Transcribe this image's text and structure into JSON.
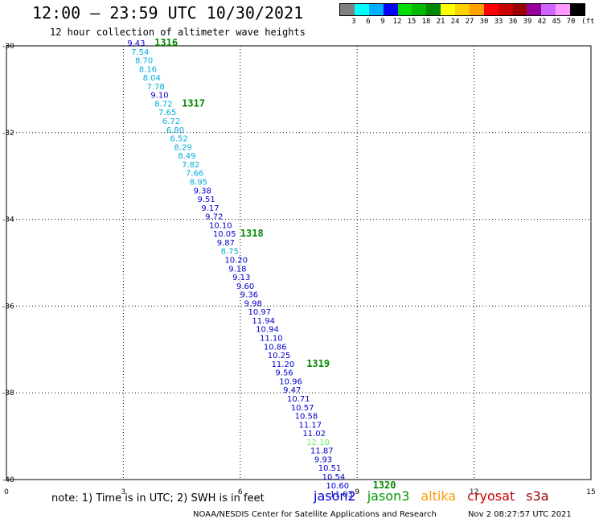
{
  "title": "12:00 – 23:59 UTC 10/30/2021",
  "subtitle": "12 hour collection of altimeter wave heights",
  "legend": {
    "colors": [
      "#808080",
      "#00ffff",
      "#00b0ff",
      "#0000ff",
      "#00dd00",
      "#00bb00",
      "#008800",
      "#ffff00",
      "#ffd000",
      "#ffa000",
      "#ff0000",
      "#cc0000",
      "#990000",
      "#990099",
      "#cc66ff",
      "#ff99ff",
      "#000000"
    ],
    "labels": [
      "3",
      "6",
      "9",
      "12",
      "15",
      "18",
      "21",
      "24",
      "27",
      "30",
      "33",
      "36",
      "39",
      "42",
      "45",
      "70",
      "(ft)"
    ]
  },
  "axes": {
    "x_ticks": [
      "0",
      "3",
      "6",
      "9",
      "12",
      "15"
    ],
    "y_ticks": [
      "-30",
      "-32",
      "-34",
      "-36",
      "-38",
      "-40"
    ]
  },
  "footer": {
    "note": "note: 1) Time is in UTC; 2) SWH is in feet",
    "credit": "NOAA/NESDIS Center for Satellite Applications and Research",
    "timestamp": "Nov  2 08:27:57 UTC 2021"
  },
  "satellites": [
    {
      "name": "jason2",
      "color": "#0000cc"
    },
    {
      "name": "jason3",
      "color": "#009900"
    },
    {
      "name": "altika",
      "color": "#ff9900"
    },
    {
      "name": "cryosat",
      "color": "#cc0000"
    },
    {
      "name": "s3a",
      "color": "#990000"
    }
  ],
  "chart_data": {
    "type": "scatter",
    "x_range": [
      0,
      15
    ],
    "y_range": [
      -40,
      -30
    ],
    "points": [
      {
        "x": 3.1,
        "y": -30.0,
        "label": "9.43",
        "color": "#0000cc"
      },
      {
        "x": 3.2,
        "y": -30.2,
        "label": "7.54",
        "color": "#00aadd"
      },
      {
        "x": 3.3,
        "y": -30.4,
        "label": "8.70",
        "color": "#00aadd"
      },
      {
        "x": 3.4,
        "y": -30.6,
        "label": "8.16",
        "color": "#00aadd"
      },
      {
        "x": 3.5,
        "y": -30.8,
        "label": "8.04",
        "color": "#00aadd"
      },
      {
        "x": 3.6,
        "y": -31.0,
        "label": "7.78",
        "color": "#00aadd"
      },
      {
        "x": 3.7,
        "y": -31.2,
        "label": "9.10",
        "color": "#0000cc"
      },
      {
        "x": 3.8,
        "y": -31.4,
        "label": "8.72",
        "color": "#00aadd"
      },
      {
        "x": 3.9,
        "y": -31.6,
        "label": "7.65",
        "color": "#00aadd"
      },
      {
        "x": 4.0,
        "y": -31.8,
        "label": "6.72",
        "color": "#00aadd"
      },
      {
        "x": 4.1,
        "y": -32.0,
        "label": "6.80",
        "color": "#00aadd"
      },
      {
        "x": 4.2,
        "y": -32.2,
        "label": "6.52",
        "color": "#00aadd"
      },
      {
        "x": 4.3,
        "y": -32.4,
        "label": "8.29",
        "color": "#00aadd"
      },
      {
        "x": 4.4,
        "y": -32.6,
        "label": "8.49",
        "color": "#00aadd"
      },
      {
        "x": 4.5,
        "y": -32.8,
        "label": "7.82",
        "color": "#00aadd"
      },
      {
        "x": 4.6,
        "y": -33.0,
        "label": "7.66",
        "color": "#00aadd"
      },
      {
        "x": 4.7,
        "y": -33.2,
        "label": "8.95",
        "color": "#00aadd"
      },
      {
        "x": 4.8,
        "y": -33.4,
        "label": "9.38",
        "color": "#0000cc"
      },
      {
        "x": 4.9,
        "y": -33.6,
        "label": "9.51",
        "color": "#0000cc"
      },
      {
        "x": 5.0,
        "y": -33.8,
        "label": "9.17",
        "color": "#0000cc"
      },
      {
        "x": 5.1,
        "y": -34.0,
        "label": "9.72",
        "color": "#0000cc"
      },
      {
        "x": 5.2,
        "y": -34.2,
        "label": "10.10",
        "color": "#0000cc"
      },
      {
        "x": 5.3,
        "y": -34.4,
        "label": "10.05",
        "color": "#0000cc"
      },
      {
        "x": 5.4,
        "y": -34.6,
        "label": "9.87",
        "color": "#0000cc"
      },
      {
        "x": 5.5,
        "y": -34.8,
        "label": "8.75",
        "color": "#00aadd"
      },
      {
        "x": 5.6,
        "y": -35.0,
        "label": "10.20",
        "color": "#0000cc"
      },
      {
        "x": 5.7,
        "y": -35.2,
        "label": "9.18",
        "color": "#0000cc"
      },
      {
        "x": 5.8,
        "y": -35.4,
        "label": "9.13",
        "color": "#0000cc"
      },
      {
        "x": 5.9,
        "y": -35.6,
        "label": "9.60",
        "color": "#0000cc"
      },
      {
        "x": 6.0,
        "y": -35.8,
        "label": "9.36",
        "color": "#0000cc"
      },
      {
        "x": 6.1,
        "y": -36.0,
        "label": "9.98",
        "color": "#0000cc"
      },
      {
        "x": 6.2,
        "y": -36.2,
        "label": "10.97",
        "color": "#0000cc"
      },
      {
        "x": 6.3,
        "y": -36.4,
        "label": "11.94",
        "color": "#0000cc"
      },
      {
        "x": 6.4,
        "y": -36.6,
        "label": "10.94",
        "color": "#0000cc"
      },
      {
        "x": 6.5,
        "y": -36.8,
        "label": "11.10",
        "color": "#0000cc"
      },
      {
        "x": 6.6,
        "y": -37.0,
        "label": "10.86",
        "color": "#0000cc"
      },
      {
        "x": 6.7,
        "y": -37.2,
        "label": "10.25",
        "color": "#0000cc"
      },
      {
        "x": 6.8,
        "y": -37.4,
        "label": "11.20",
        "color": "#0000cc"
      },
      {
        "x": 6.9,
        "y": -37.6,
        "label": "9.56",
        "color": "#0000cc"
      },
      {
        "x": 7.0,
        "y": -37.8,
        "label": "10.96",
        "color": "#0000cc"
      },
      {
        "x": 7.1,
        "y": -38.0,
        "label": "9.47",
        "color": "#0000cc"
      },
      {
        "x": 7.2,
        "y": -38.2,
        "label": "10.71",
        "color": "#0000cc"
      },
      {
        "x": 7.3,
        "y": -38.4,
        "label": "10.57",
        "color": "#0000cc"
      },
      {
        "x": 7.4,
        "y": -38.6,
        "label": "10.58",
        "color": "#0000cc"
      },
      {
        "x": 7.5,
        "y": -38.8,
        "label": "11.17",
        "color": "#0000cc"
      },
      {
        "x": 7.6,
        "y": -39.0,
        "label": "11.02",
        "color": "#0000cc"
      },
      {
        "x": 7.7,
        "y": -39.2,
        "label": "12.10",
        "color": "#66ee66"
      },
      {
        "x": 7.8,
        "y": -39.4,
        "label": "11.87",
        "color": "#0000cc"
      },
      {
        "x": 7.9,
        "y": -39.6,
        "label": "9.93",
        "color": "#0000cc"
      },
      {
        "x": 8.0,
        "y": -39.8,
        "label": "10.51",
        "color": "#0000cc"
      },
      {
        "x": 8.1,
        "y": -40.0,
        "label": "10.54",
        "color": "#0000cc"
      },
      {
        "x": 8.2,
        "y": -40.2,
        "label": "10.60",
        "color": "#0000cc"
      },
      {
        "x": 8.3,
        "y": -40.4,
        "label": "11.03",
        "color": "#0000cc"
      }
    ],
    "orbits": [
      {
        "label": "1316",
        "x": 3.8,
        "y": -30.0
      },
      {
        "label": "1317",
        "x": 4.5,
        "y": -31.4
      },
      {
        "label": "1318",
        "x": 6.0,
        "y": -34.4
      },
      {
        "label": "1319",
        "x": 7.7,
        "y": -37.4
      },
      {
        "label": "1320",
        "x": 9.4,
        "y": -40.2
      }
    ]
  }
}
